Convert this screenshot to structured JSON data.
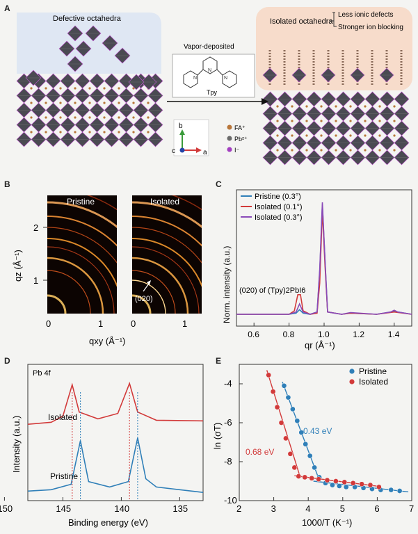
{
  "panels": {
    "A": {
      "letter": "A",
      "left_title": "Defective octahedra",
      "right_title": "Isolated octahedra",
      "right_notes": [
        "Less ionic defects",
        "Stronger ion blocking"
      ],
      "molecule_caption_top": "Vapor-deposited",
      "molecule_name": "Tpy",
      "axes": {
        "b": "b",
        "c": "c",
        "a": "a"
      },
      "legend": [
        {
          "label": "FA⁺",
          "color": "#b8763a"
        },
        {
          "label": "Pb²⁺",
          "color": "#6a6a6a"
        },
        {
          "label": "I⁻",
          "color": "#a23ec0"
        }
      ],
      "colors": {
        "left_bg": "#dfe7f3",
        "right_bg": "#f7dccb",
        "octahedron": "#4a4a52",
        "octahedron_edge": "#c455d6"
      }
    },
    "B": {
      "letter": "B",
      "images": [
        {
          "label": "Pristine"
        },
        {
          "label": "Isolated"
        }
      ],
      "annotation": "(020)",
      "ylabel": "qz (Å⁻¹)",
      "xlabel": "qxy (Å⁻¹)",
      "yticks": [
        "2",
        "1"
      ],
      "xticks": [
        "0",
        "1"
      ]
    },
    "C": {
      "letter": "C"
    },
    "D": {
      "letter": "D"
    },
    "E": {
      "letter": "E"
    }
  },
  "chart_data": [
    {
      "type": "line",
      "panel": "C",
      "xlabel": "qr (Å⁻¹)",
      "ylabel": "Norm. intensity (a.u.)",
      "xlim": [
        0.5,
        1.5
      ],
      "xticks": [
        "0.6",
        "0.8",
        "1.0",
        "1.2",
        "1.4"
      ],
      "annotation": "(020) of (Tpy)2PbI6",
      "legend_position": "top-left",
      "series": [
        {
          "name": "Pristine (0.3°)",
          "color": "#2f7fb8",
          "points": [
            [
              0.5,
              0.03
            ],
            [
              0.8,
              0.03
            ],
            [
              0.84,
              0.04
            ],
            [
              0.86,
              0.07
            ],
            [
              0.88,
              0.04
            ],
            [
              0.92,
              0.03
            ],
            [
              0.96,
              0.05
            ],
            [
              0.975,
              0.4
            ],
            [
              0.99,
              0.98
            ],
            [
              1.005,
              0.5
            ],
            [
              1.02,
              0.05
            ],
            [
              1.1,
              0.03
            ],
            [
              1.15,
              0.04
            ],
            [
              1.3,
              0.03
            ],
            [
              1.38,
              0.05
            ],
            [
              1.4,
              0.06
            ],
            [
              1.42,
              0.05
            ],
            [
              1.5,
              0.03
            ]
          ]
        },
        {
          "name": "Isolated (0.1°)",
          "color": "#d23a3a",
          "points": [
            [
              0.5,
              0.03
            ],
            [
              0.8,
              0.03
            ],
            [
              0.83,
              0.06
            ],
            [
              0.85,
              0.2
            ],
            [
              0.865,
              0.2
            ],
            [
              0.88,
              0.06
            ],
            [
              0.92,
              0.03
            ],
            [
              0.96,
              0.04
            ],
            [
              0.975,
              0.3
            ],
            [
              0.99,
              0.93
            ],
            [
              1.005,
              0.45
            ],
            [
              1.02,
              0.05
            ],
            [
              1.1,
              0.03
            ],
            [
              1.15,
              0.04
            ],
            [
              1.3,
              0.03
            ],
            [
              1.4,
              0.05
            ],
            [
              1.5,
              0.03
            ]
          ]
        },
        {
          "name": "Isolated (0.3°)",
          "color": "#8a4ab8",
          "points": [
            [
              0.5,
              0.03
            ],
            [
              0.8,
              0.03
            ],
            [
              0.84,
              0.05
            ],
            [
              0.86,
              0.12
            ],
            [
              0.88,
              0.05
            ],
            [
              0.92,
              0.03
            ],
            [
              0.96,
              0.05
            ],
            [
              0.975,
              0.42
            ],
            [
              0.99,
              1.0
            ],
            [
              1.005,
              0.5
            ],
            [
              1.02,
              0.05
            ],
            [
              1.1,
              0.03
            ],
            [
              1.15,
              0.045
            ],
            [
              1.3,
              0.03
            ],
            [
              1.38,
              0.05
            ],
            [
              1.4,
              0.065
            ],
            [
              1.42,
              0.05
            ],
            [
              1.5,
              0.03
            ]
          ]
        }
      ]
    },
    {
      "type": "line",
      "panel": "D",
      "title": "Pb 4f",
      "xlabel": "Binding energy (eV)",
      "ylabel": "Intensity (a.u.)",
      "xlim": [
        148,
        133
      ],
      "xticks": [
        "150",
        "145",
        "140",
        "135"
      ],
      "series": [
        {
          "name": "Isolated",
          "color": "#d23a3a",
          "ref_peaks": [
            144.2,
            139.3
          ],
          "points": [
            [
              148,
              0.56
            ],
            [
              146,
              0.575
            ],
            [
              145,
              0.62
            ],
            [
              144.2,
              0.85
            ],
            [
              143.6,
              0.65
            ],
            [
              142,
              0.6
            ],
            [
              140.3,
              0.64
            ],
            [
              139.3,
              0.86
            ],
            [
              138.6,
              0.65
            ],
            [
              137,
              0.59
            ],
            [
              133,
              0.585
            ]
          ]
        },
        {
          "name": "Pristine",
          "color": "#2f7fb8",
          "ref_peaks": [
            143.5,
            138.6
          ],
          "points": [
            [
              148,
              0.07
            ],
            [
              146,
              0.08
            ],
            [
              144.3,
              0.12
            ],
            [
              143.5,
              0.44
            ],
            [
              142.8,
              0.14
            ],
            [
              141,
              0.1
            ],
            [
              139.4,
              0.14
            ],
            [
              138.6,
              0.46
            ],
            [
              137.9,
              0.16
            ],
            [
              137,
              0.1
            ],
            [
              133,
              0.06
            ]
          ]
        }
      ]
    },
    {
      "type": "scatter",
      "panel": "E",
      "xlabel": "1000/T (K⁻¹)",
      "ylabel": "ln (σT)",
      "xlim": [
        2,
        7
      ],
      "ylim": [
        -10,
        -3
      ],
      "xticks": [
        "2",
        "3",
        "4",
        "5",
        "6",
        "7"
      ],
      "yticks": [
        "-4",
        "-6",
        "-8",
        "-10"
      ],
      "legend_position": "top-right",
      "annotations": [
        {
          "text": "0.43 eV",
          "color": "#2f7fb8"
        },
        {
          "text": "0.68 eV",
          "color": "#d23a3a"
        }
      ],
      "series": [
        {
          "name": "Pristine",
          "color": "#2f7fb8",
          "points": [
            [
              3.3,
              -4.1
            ],
            [
              3.42,
              -4.7
            ],
            [
              3.55,
              -5.3
            ],
            [
              3.68,
              -5.9
            ],
            [
              3.8,
              -6.5
            ],
            [
              3.92,
              -7.1
            ],
            [
              4.05,
              -7.7
            ],
            [
              4.18,
              -8.3
            ],
            [
              4.32,
              -8.8
            ],
            [
              4.5,
              -9.1
            ],
            [
              4.7,
              -9.2
            ],
            [
              4.9,
              -9.25
            ],
            [
              5.1,
              -9.3
            ],
            [
              5.35,
              -9.3
            ],
            [
              5.6,
              -9.35
            ],
            [
              5.85,
              -9.4
            ],
            [
              6.1,
              -9.45
            ],
            [
              6.4,
              -9.45
            ],
            [
              6.65,
              -9.5
            ]
          ]
        },
        {
          "name": "Isolated",
          "color": "#d23a3a",
          "points": [
            [
              2.85,
              -3.55
            ],
            [
              2.98,
              -4.4
            ],
            [
              3.1,
              -5.2
            ],
            [
              3.22,
              -6.0
            ],
            [
              3.35,
              -6.8
            ],
            [
              3.48,
              -7.6
            ],
            [
              3.6,
              -8.3
            ],
            [
              3.72,
              -8.75
            ],
            [
              3.9,
              -8.8
            ],
            [
              4.1,
              -8.85
            ],
            [
              4.3,
              -8.9
            ],
            [
              4.55,
              -8.95
            ],
            [
              4.8,
              -9.0
            ],
            [
              5.05,
              -9.05
            ],
            [
              5.3,
              -9.1
            ],
            [
              5.55,
              -9.15
            ],
            [
              5.8,
              -9.2
            ],
            [
              6.05,
              -9.3
            ]
          ]
        }
      ]
    }
  ]
}
